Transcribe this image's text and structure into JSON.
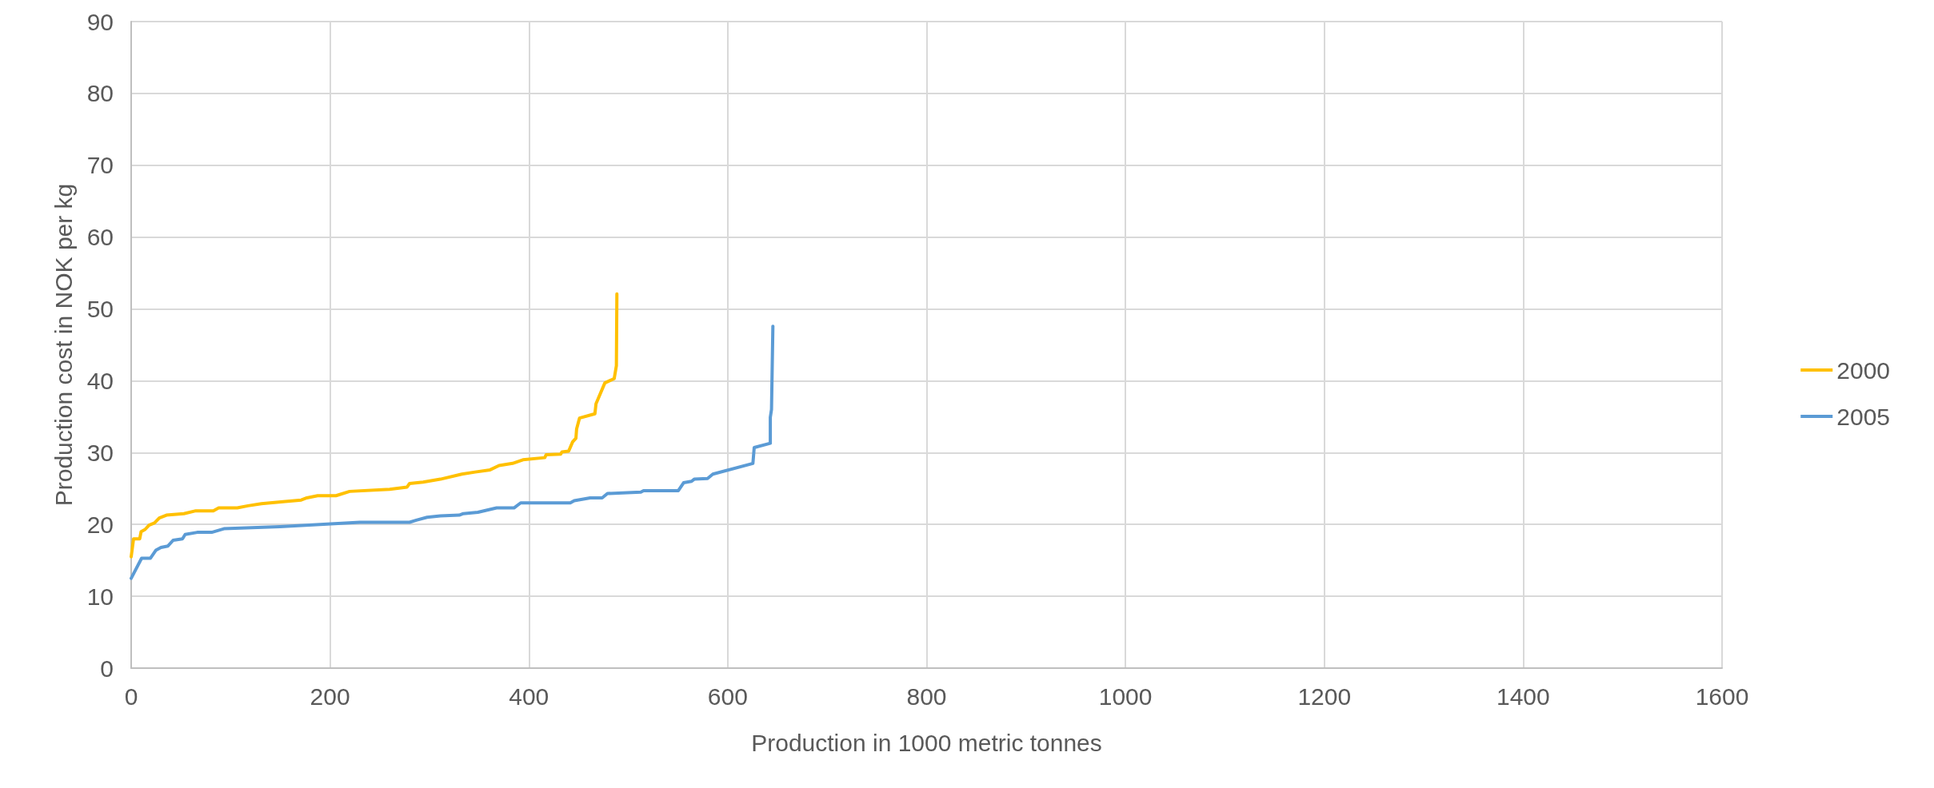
{
  "chart_data": {
    "type": "line",
    "xlabel": "Production in 1000 metric tonnes",
    "ylabel": "Production cost in NOK per kg",
    "xlim": [
      0,
      1600
    ],
    "xticks": [
      0,
      200,
      400,
      600,
      800,
      1000,
      1200,
      1400,
      1600
    ],
    "ylim": [
      0,
      90
    ],
    "yticks": [
      0,
      10,
      20,
      30,
      40,
      50,
      60,
      70,
      80,
      90
    ],
    "grid": true,
    "legend": "right",
    "marker": "none",
    "line_style": "solid",
    "series": [
      {
        "name": "2000",
        "color": "#ffc000",
        "x": [
          0,
          2.4,
          8.6,
          10,
          14,
          18,
          23.4,
          28.3,
          35.5,
          53,
          65,
          82.6,
          88,
          106.7,
          117.5,
          131,
          155,
          171,
          176.7,
          187.5,
          206,
          219.7,
          260,
          277.5,
          280,
          293.6,
          311,
          332.6,
          346,
          361,
          370,
          383.6,
          394,
          416,
          417.3,
          432,
          433.3,
          440,
          444,
          447.3,
          448,
          450.9,
          466.4,
          467.5,
          476.4,
          485.8,
          488,
          488.5
        ],
        "values": [
          15.5,
          18,
          18,
          19,
          19.3,
          19.9,
          20.2,
          20.9,
          21.3,
          21.5,
          21.9,
          21.9,
          22.3,
          22.3,
          22.6,
          22.9,
          23.2,
          23.4,
          23.7,
          24,
          24,
          24.6,
          24.9,
          25.2,
          25.7,
          25.9,
          26.3,
          27,
          27.3,
          27.6,
          28.2,
          28.5,
          29,
          29.3,
          29.7,
          29.8,
          30.1,
          30.2,
          31.5,
          32,
          33.3,
          34.8,
          35.4,
          36.8,
          39.7,
          40.3,
          42.1,
          52.1
        ]
      },
      {
        "name": "2005",
        "color": "#5b9bd5",
        "x": [
          0,
          10.5,
          19.4,
          24.8,
          30,
          37,
          42.2,
          51.6,
          54.3,
          66.4,
          81,
          93.3,
          149.7,
          190,
          230,
          280,
          286.8,
          297.6,
          311,
          330,
          334,
          348.7,
          367.5,
          385,
          391.7,
          441.6,
          445.6,
          461.6,
          473.7,
          479,
          512.6,
          515.3,
          550.3,
          555.6,
          563.6,
          566.3,
          579.7,
          585,
          625.3,
          626.6,
          642.8,
          642.8,
          644,
          645.4
        ],
        "values": [
          12.5,
          15.3,
          15.3,
          16.4,
          16.8,
          17,
          17.8,
          18,
          18.6,
          18.9,
          18.9,
          19.4,
          19.7,
          20,
          20.3,
          20.3,
          20.6,
          21,
          21.2,
          21.3,
          21.5,
          21.7,
          22.3,
          22.3,
          23,
          23,
          23.3,
          23.7,
          23.7,
          24.3,
          24.5,
          24.7,
          24.7,
          25.8,
          26,
          26.3,
          26.4,
          27,
          28.5,
          30.7,
          31.3,
          34.9,
          36,
          47.6
        ]
      }
    ]
  }
}
